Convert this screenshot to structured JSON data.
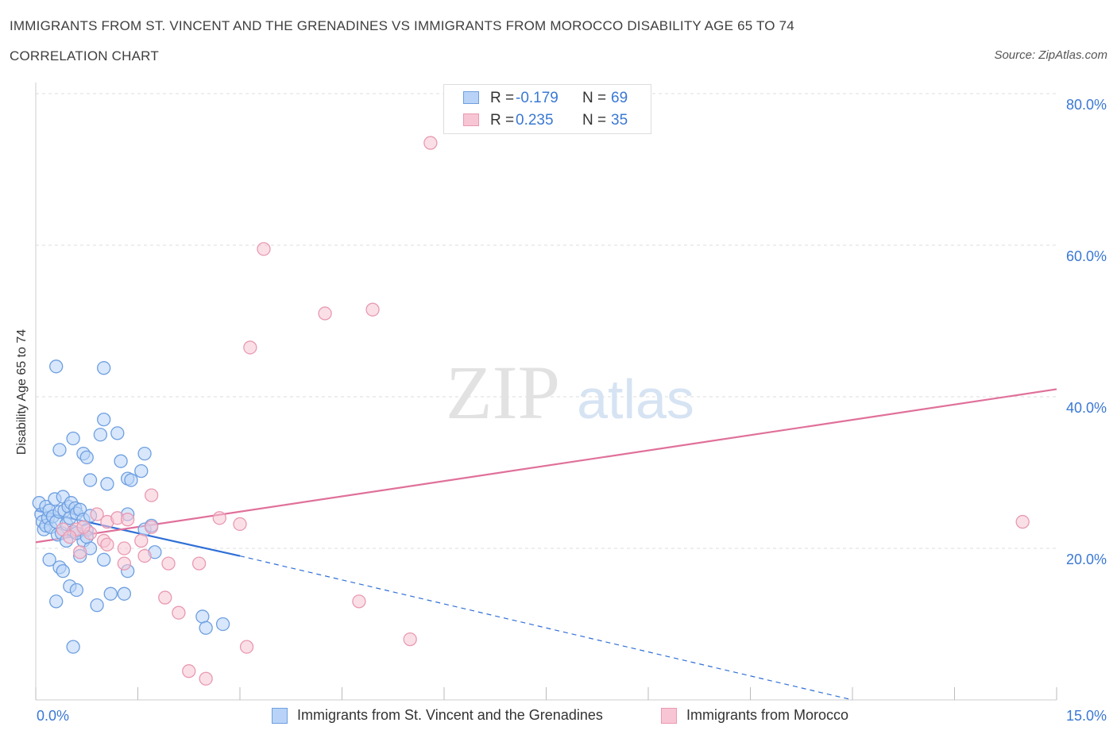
{
  "title": "IMMIGRANTS FROM ST. VINCENT AND THE GRENADINES VS IMMIGRANTS FROM MOROCCO DISABILITY AGE 65 TO 74",
  "subtitle": "CORRELATION CHART",
  "source": "Source: ZipAtlas.com",
  "watermark": {
    "zip": "ZIP",
    "atlas": "atlas"
  },
  "colors": {
    "blue_fill": "#b8d3f7",
    "blue_stroke": "#6e9fe0",
    "blue_line": "#2f6fd6",
    "pink_fill": "#f8c5d4",
    "pink_stroke": "#e89ab2",
    "pink_line": "#e0709a",
    "axis_text": "#3a78d4",
    "grid": "#dcdcdc"
  },
  "legend": {
    "series1": {
      "r_label": "R =",
      "r_value": "-0.179",
      "n_label": "N =",
      "n_value": "69"
    },
    "series2": {
      "r_label": "R =",
      "r_value": "0.235",
      "n_label": "N =",
      "n_value": "35"
    }
  },
  "chart_data": {
    "type": "scatter",
    "title": "IMMIGRANTS FROM ST. VINCENT AND THE GRENADINES VS IMMIGRANTS FROM MOROCCO DISABILITY AGE 65 TO 74",
    "subtitle": "CORRELATION CHART",
    "xlabel": "",
    "ylabel": "Disability Age 65 to 74",
    "xlim": [
      0,
      15
    ],
    "ylim": [
      0,
      80
    ],
    "x_tick_labels": [
      {
        "value": 0,
        "label": "0.0%"
      },
      {
        "value": 15,
        "label": "15.0%"
      }
    ],
    "y_tick_labels": [
      {
        "value": 20,
        "label": "20.0%"
      },
      {
        "value": 40,
        "label": "40.0%"
      },
      {
        "value": 60,
        "label": "60.0%"
      },
      {
        "value": 80,
        "label": "80.0%"
      }
    ],
    "grid": true,
    "legend_position": "bottom",
    "series": [
      {
        "name": "Immigrants from St. Vincent and the Grenadines",
        "color": "blue",
        "r": -0.179,
        "n": 69,
        "trend": {
          "x0": 0,
          "y0": 25.0,
          "x1": 3.0,
          "y1": 19.0,
          "dash_to_x": 12.0,
          "dash_to_y": 0.0
        },
        "points": [
          [
            0.05,
            26.0
          ],
          [
            0.08,
            24.5
          ],
          [
            0.1,
            23.5
          ],
          [
            0.12,
            22.5
          ],
          [
            0.15,
            25.5
          ],
          [
            0.15,
            23.0
          ],
          [
            0.18,
            24.0
          ],
          [
            0.2,
            25.0
          ],
          [
            0.22,
            22.8
          ],
          [
            0.25,
            24.2
          ],
          [
            0.28,
            26.5
          ],
          [
            0.3,
            23.5
          ],
          [
            0.32,
            21.8
          ],
          [
            0.35,
            24.8
          ],
          [
            0.38,
            22.0
          ],
          [
            0.4,
            26.8
          ],
          [
            0.42,
            25.0
          ],
          [
            0.45,
            23.2
          ],
          [
            0.48,
            25.5
          ],
          [
            0.5,
            24.0
          ],
          [
            0.52,
            26.0
          ],
          [
            0.55,
            22.2
          ],
          [
            0.58,
            25.3
          ],
          [
            0.6,
            24.6
          ],
          [
            0.65,
            25.1
          ],
          [
            0.7,
            23.8
          ],
          [
            0.75,
            22.4
          ],
          [
            0.8,
            24.3
          ],
          [
            0.2,
            18.5
          ],
          [
            0.35,
            17.5
          ],
          [
            0.4,
            17.0
          ],
          [
            0.5,
            15.0
          ],
          [
            0.6,
            14.5
          ],
          [
            0.3,
            13.0
          ],
          [
            0.55,
            7.0
          ],
          [
            0.3,
            44.0
          ],
          [
            1.0,
            43.8
          ],
          [
            1.0,
            37.0
          ],
          [
            0.95,
            35.0
          ],
          [
            1.2,
            35.2
          ],
          [
            0.55,
            34.5
          ],
          [
            0.35,
            33.0
          ],
          [
            0.7,
            32.5
          ],
          [
            0.75,
            32.0
          ],
          [
            1.25,
            31.5
          ],
          [
            1.6,
            32.5
          ],
          [
            1.55,
            30.2
          ],
          [
            0.8,
            29.0
          ],
          [
            1.35,
            29.2
          ],
          [
            1.05,
            28.5
          ],
          [
            1.4,
            29.0
          ],
          [
            1.35,
            24.5
          ],
          [
            1.6,
            22.5
          ],
          [
            1.7,
            23.0
          ],
          [
            0.7,
            21.0
          ],
          [
            0.8,
            20.0
          ],
          [
            0.65,
            19.0
          ],
          [
            1.0,
            18.5
          ],
          [
            1.75,
            19.5
          ],
          [
            1.35,
            17.0
          ],
          [
            0.9,
            12.5
          ],
          [
            1.1,
            14.0
          ],
          [
            1.3,
            14.0
          ],
          [
            2.45,
            11.0
          ],
          [
            2.75,
            10.0
          ],
          [
            2.5,
            9.5
          ],
          [
            0.6,
            22.0
          ],
          [
            0.75,
            21.5
          ],
          [
            0.45,
            21.0
          ]
        ]
      },
      {
        "name": "Immigrants from Morocco",
        "color": "pink",
        "r": 0.235,
        "n": 35,
        "trend": {
          "x0": 0,
          "y0": 20.8,
          "x1": 15.0,
          "y1": 41.0
        },
        "points": [
          [
            5.8,
            73.5
          ],
          [
            3.35,
            59.5
          ],
          [
            4.95,
            51.5
          ],
          [
            4.25,
            51.0
          ],
          [
            3.15,
            46.5
          ],
          [
            1.7,
            27.0
          ],
          [
            0.6,
            22.5
          ],
          [
            0.9,
            24.5
          ],
          [
            1.05,
            23.5
          ],
          [
            1.2,
            24.0
          ],
          [
            1.35,
            23.8
          ],
          [
            0.8,
            22.0
          ],
          [
            1.0,
            21.0
          ],
          [
            1.05,
            20.5
          ],
          [
            1.55,
            21.0
          ],
          [
            1.7,
            22.8
          ],
          [
            1.3,
            20.0
          ],
          [
            1.6,
            19.0
          ],
          [
            1.3,
            18.0
          ],
          [
            1.95,
            18.0
          ],
          [
            2.4,
            18.0
          ],
          [
            2.7,
            24.0
          ],
          [
            3.0,
            23.2
          ],
          [
            0.65,
            19.5
          ],
          [
            1.9,
            13.5
          ],
          [
            2.1,
            11.5
          ],
          [
            2.25,
            3.8
          ],
          [
            2.5,
            2.8
          ],
          [
            3.1,
            7.0
          ],
          [
            4.75,
            13.0
          ],
          [
            5.5,
            8.0
          ],
          [
            14.5,
            23.5
          ],
          [
            0.4,
            22.5
          ],
          [
            0.5,
            21.5
          ],
          [
            0.7,
            22.8
          ]
        ]
      }
    ]
  }
}
